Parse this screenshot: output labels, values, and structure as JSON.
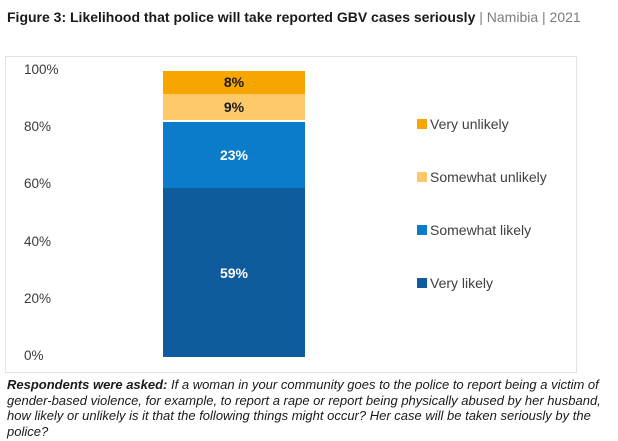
{
  "header": {
    "title_bold": "Figure 3: Likelihood that police will take reported GBV cases seriously",
    "title_context": "| Namibia | 2021"
  },
  "chart_data": {
    "type": "bar",
    "variant": "stacked-vertical-single-column",
    "title": "Likelihood that police will take reported GBV cases seriously",
    "country": "Namibia",
    "year": "2021",
    "ylim": [
      0,
      100
    ],
    "yticks": [
      0,
      20,
      40,
      60,
      80,
      100
    ],
    "ytick_suffix": "%",
    "grid": false,
    "legend_position": "right",
    "series": [
      {
        "name": "Very unlikely",
        "value": 8,
        "data_label": "8%",
        "color": "#F7A500",
        "label_color": "#1A1A1A"
      },
      {
        "name": "Somewhat unlikely",
        "value": 9,
        "data_label": "9%",
        "color": "#FDC968",
        "label_color": "#1A1A1A"
      },
      {
        "name": "Somewhat likely",
        "value": 23,
        "data_label": "23%",
        "color": "#0A7CC9",
        "label_color": "#FFFFFF"
      },
      {
        "name": "Very likely",
        "value": 59,
        "data_label": "59%",
        "color": "#0E5C9E",
        "label_color": "#FFFFFF"
      }
    ],
    "stack_order_top_to_bottom": [
      "Very unlikely",
      "Somewhat unlikely",
      "Somewhat likely",
      "Very likely"
    ],
    "unlabeled_gap": {
      "after": "Somewhat unlikely",
      "pct": 1
    },
    "legend_items_top_to_bottom": [
      "Very unlikely",
      "Somewhat unlikely",
      "Somewhat likely",
      "Very likely"
    ]
  },
  "footnote": {
    "lead": "Respondents were asked:",
    "question": "If a woman in your community goes to the police to report being a victim of gender-based violence, for example, to report a rape or report being physically abused by her husband, how likely or unlikely is it that the following things might occur? Her case will be taken seriously by the police?"
  }
}
